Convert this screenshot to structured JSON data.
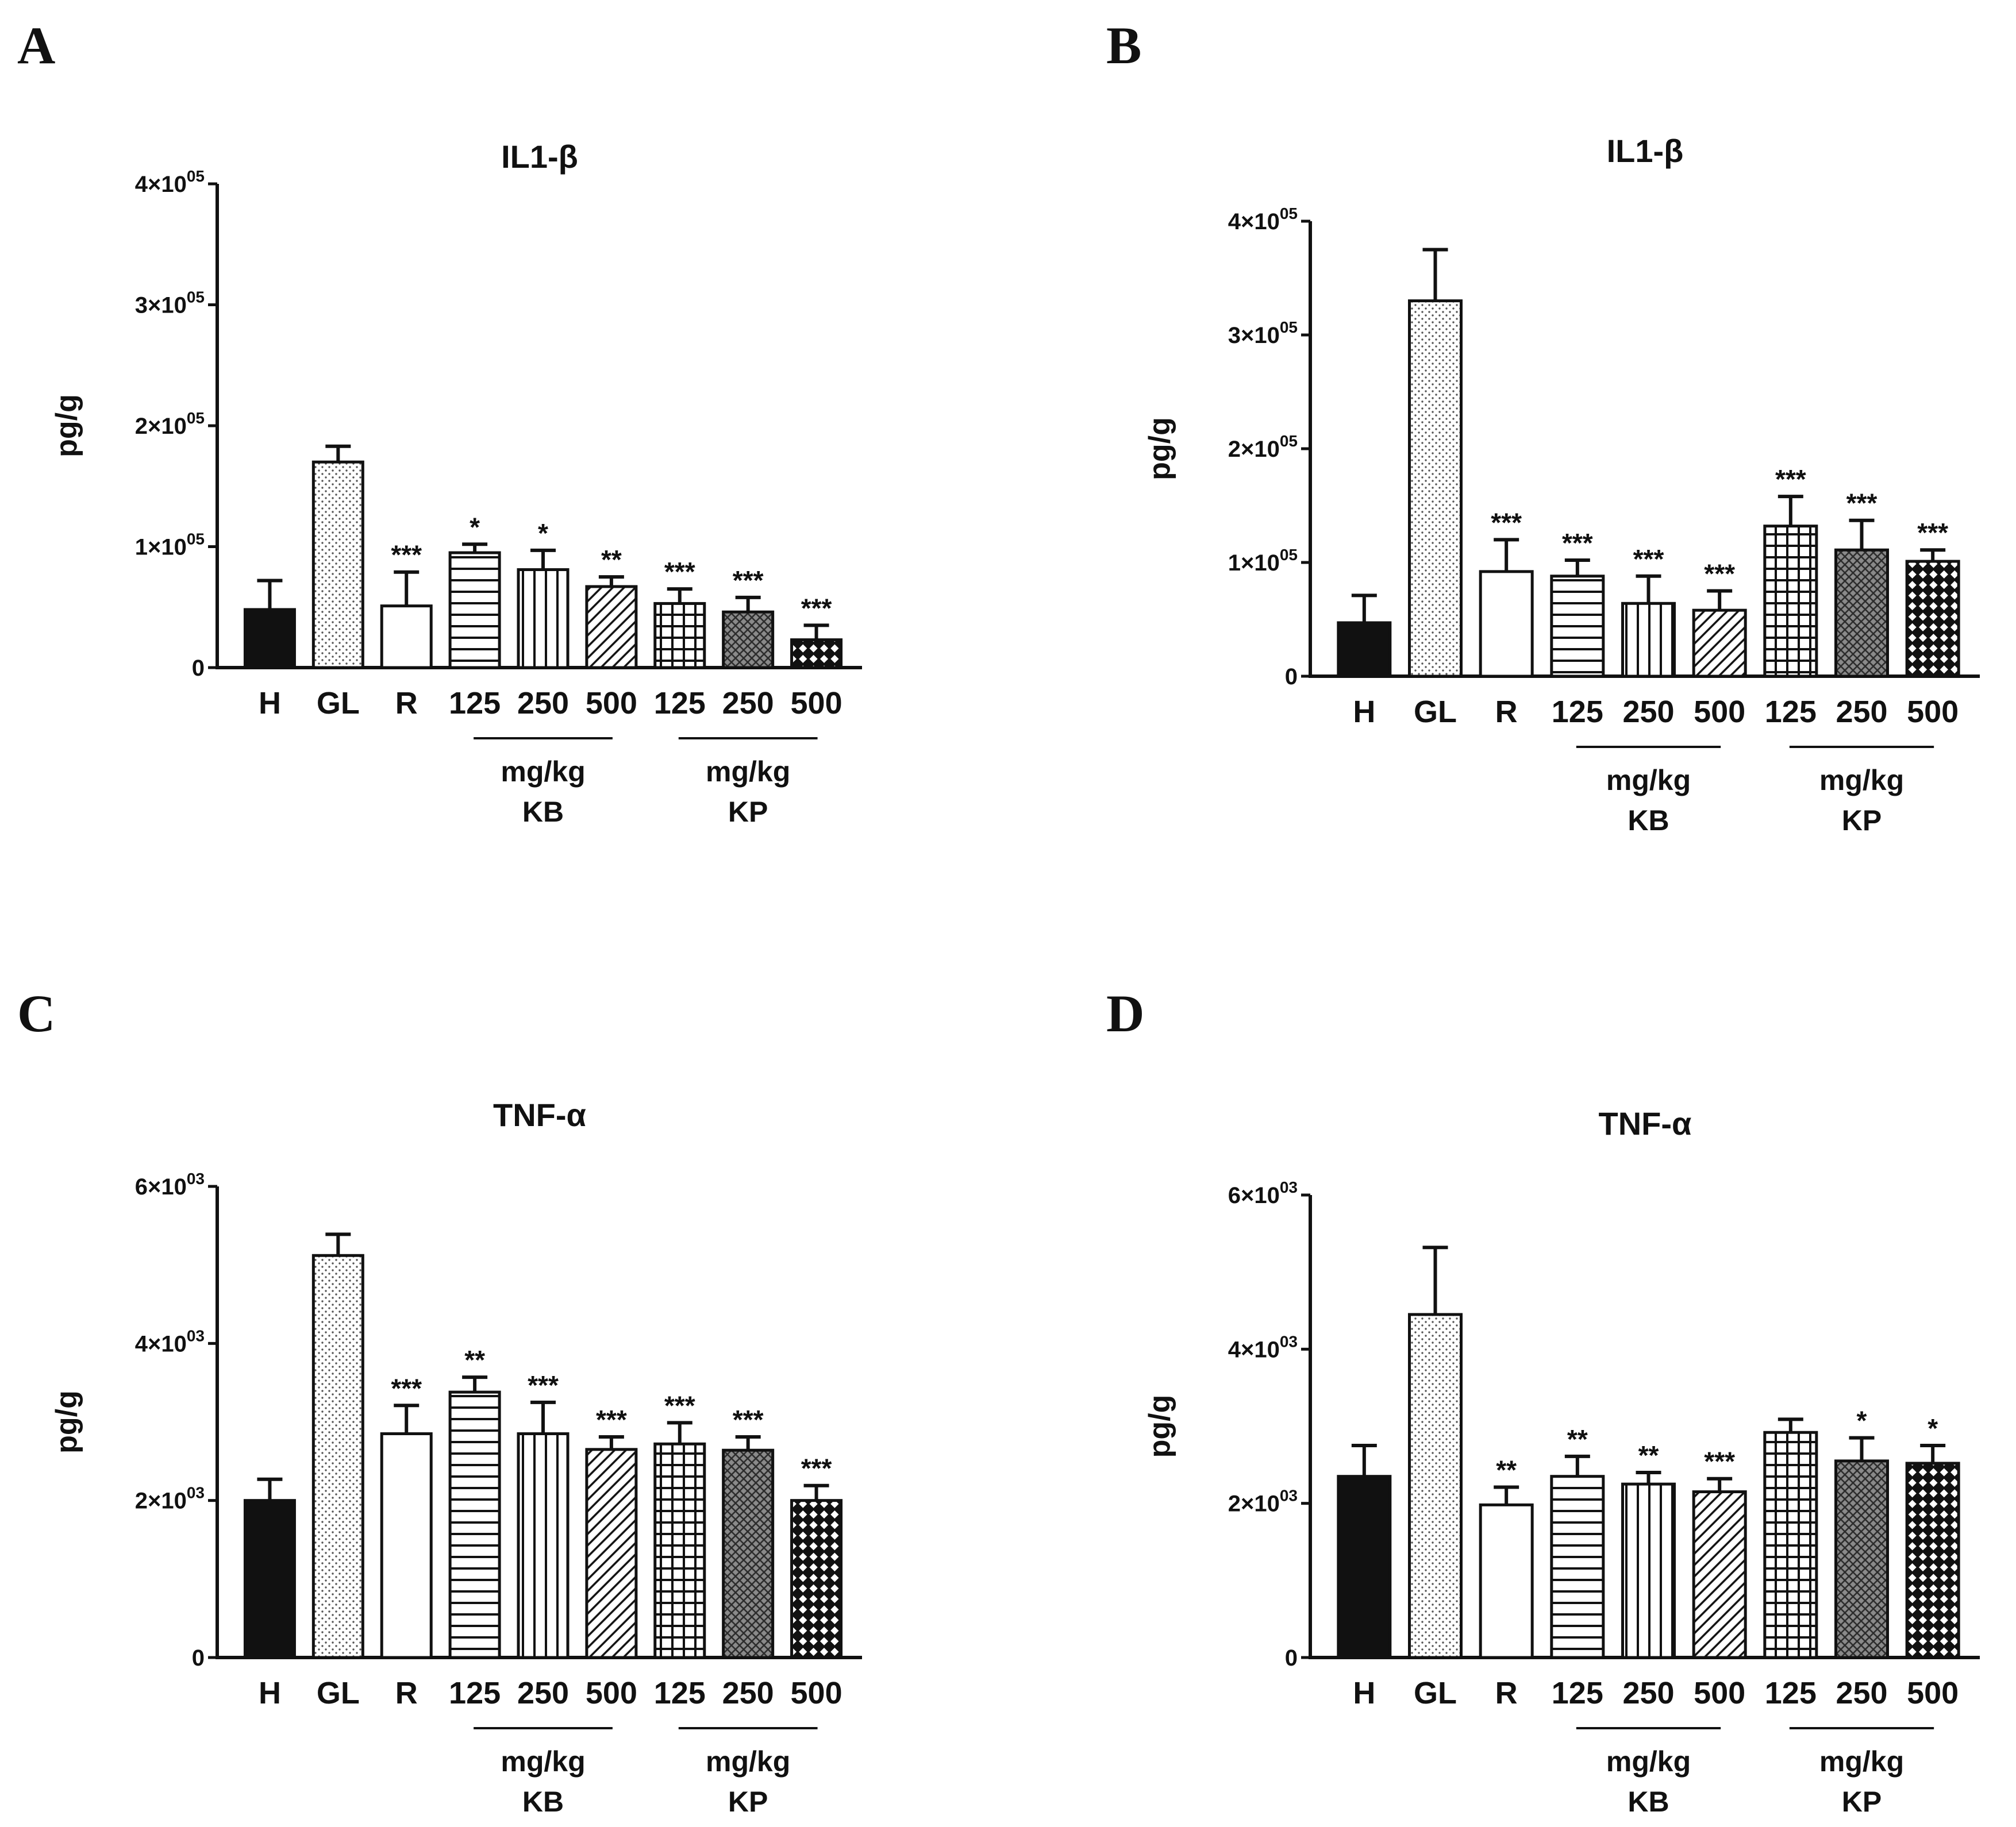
{
  "figure": {
    "panels": [
      "A",
      "B",
      "C",
      "D"
    ]
  },
  "patterns": {
    "H": "solid-black",
    "GL": "fine-dots",
    "R": "open-white",
    "KB125": "horizontal-lines",
    "KB250": "vertical-lines",
    "KB500": "diagonal-lines",
    "KP125": "grid",
    "KP250": "dense-crosshatch",
    "KP500": "diamond-checker"
  },
  "chart_data": [
    {
      "panel": "A",
      "type": "bar",
      "title": "IL1-β",
      "ylabel": "pg/g",
      "xlabel": "",
      "ylim": [
        0,
        400000
      ],
      "yticks": [
        {
          "value": 0,
          "mant": "0",
          "exp": ""
        },
        {
          "value": 100000,
          "mant": "1×10",
          "exp": "05"
        },
        {
          "value": 200000,
          "mant": "2×10",
          "exp": "05"
        },
        {
          "value": 300000,
          "mant": "3×10",
          "exp": "05"
        },
        {
          "value": 400000,
          "mant": "4×10",
          "exp": "05"
        }
      ],
      "categories": [
        "H",
        "GL",
        "R",
        "125",
        "250",
        "500",
        "125",
        "250",
        "500"
      ],
      "values": [
        48000,
        170000,
        51000,
        95000,
        81000,
        67000,
        53000,
        46000,
        23000
      ],
      "errors": [
        24000,
        13000,
        28000,
        7000,
        16000,
        8000,
        12000,
        12000,
        12000
      ],
      "significance": [
        "",
        "",
        "***",
        "*",
        "*",
        "**",
        "***",
        "***",
        "***"
      ],
      "groups": [
        {
          "unit": "mg/kg",
          "name": "KB",
          "from": 3,
          "to": 5
        },
        {
          "unit": "mg/kg",
          "name": "KP",
          "from": 6,
          "to": 8
        }
      ]
    },
    {
      "panel": "B",
      "type": "bar",
      "title": "IL1-β",
      "ylabel": "pg/g",
      "xlabel": "",
      "ylim": [
        0,
        400000
      ],
      "yticks": [
        {
          "value": 0,
          "mant": "0",
          "exp": ""
        },
        {
          "value": 100000,
          "mant": "1×10",
          "exp": "05"
        },
        {
          "value": 200000,
          "mant": "2×10",
          "exp": "05"
        },
        {
          "value": 300000,
          "mant": "3×10",
          "exp": "05"
        },
        {
          "value": 400000,
          "mant": "4×10",
          "exp": "05"
        }
      ],
      "categories": [
        "H",
        "GL",
        "R",
        "125",
        "250",
        "500",
        "125",
        "250",
        "500"
      ],
      "values": [
        47000,
        330000,
        92000,
        88000,
        64000,
        58000,
        132000,
        111000,
        101000
      ],
      "errors": [
        24000,
        45000,
        28000,
        14000,
        24000,
        17000,
        26000,
        26000,
        10000
      ],
      "significance": [
        "",
        "",
        "***",
        "***",
        "***",
        "***",
        "***",
        "***",
        "***"
      ],
      "groups": [
        {
          "unit": "mg/kg",
          "name": "KB",
          "from": 3,
          "to": 5
        },
        {
          "unit": "mg/kg",
          "name": "KP",
          "from": 6,
          "to": 8
        }
      ]
    },
    {
      "panel": "C",
      "type": "bar",
      "title": "TNF-α",
      "ylabel": "pg/g",
      "xlabel": "",
      "ylim": [
        0,
        6000
      ],
      "yticks": [
        {
          "value": 0,
          "mant": "0",
          "exp": ""
        },
        {
          "value": 2000,
          "mant": "2×10",
          "exp": "03"
        },
        {
          "value": 4000,
          "mant": "4×10",
          "exp": "03"
        },
        {
          "value": 6000,
          "mant": "6×10",
          "exp": "03"
        }
      ],
      "categories": [
        "H",
        "GL",
        "R",
        "125",
        "250",
        "500",
        "125",
        "250",
        "500"
      ],
      "values": [
        2000,
        5120,
        2850,
        3380,
        2850,
        2650,
        2720,
        2640,
        2000
      ],
      "errors": [
        270,
        270,
        360,
        190,
        400,
        160,
        270,
        170,
        190
      ],
      "significance": [
        "",
        "",
        "***",
        "**",
        "***",
        "***",
        "***",
        "***",
        "***"
      ],
      "groups": [
        {
          "unit": "mg/kg",
          "name": "KB",
          "from": 3,
          "to": 5
        },
        {
          "unit": "mg/kg",
          "name": "KP",
          "from": 6,
          "to": 8
        }
      ]
    },
    {
      "panel": "D",
      "type": "bar",
      "title": "TNF-α",
      "ylabel": "pg/g",
      "xlabel": "",
      "ylim": [
        0,
        6000
      ],
      "yticks": [
        {
          "value": 0,
          "mant": "0",
          "exp": ""
        },
        {
          "value": 2000,
          "mant": "2×10",
          "exp": "03"
        },
        {
          "value": 4000,
          "mant": "4×10",
          "exp": "03"
        },
        {
          "value": 6000,
          "mant": "6×10",
          "exp": "03"
        }
      ],
      "categories": [
        "H",
        "GL",
        "R",
        "125",
        "250",
        "500",
        "125",
        "250",
        "500"
      ],
      "values": [
        2350,
        4450,
        1980,
        2350,
        2250,
        2150,
        2920,
        2550,
        2520
      ],
      "errors": [
        400,
        870,
        230,
        260,
        150,
        170,
        170,
        300,
        230
      ],
      "significance": [
        "",
        "",
        "**",
        "**",
        "**",
        "***",
        "",
        "*",
        "*"
      ],
      "groups": [
        {
          "unit": "mg/kg",
          "name": "KB",
          "from": 3,
          "to": 5
        },
        {
          "unit": "mg/kg",
          "name": "KP",
          "from": 6,
          "to": 8
        }
      ]
    }
  ]
}
